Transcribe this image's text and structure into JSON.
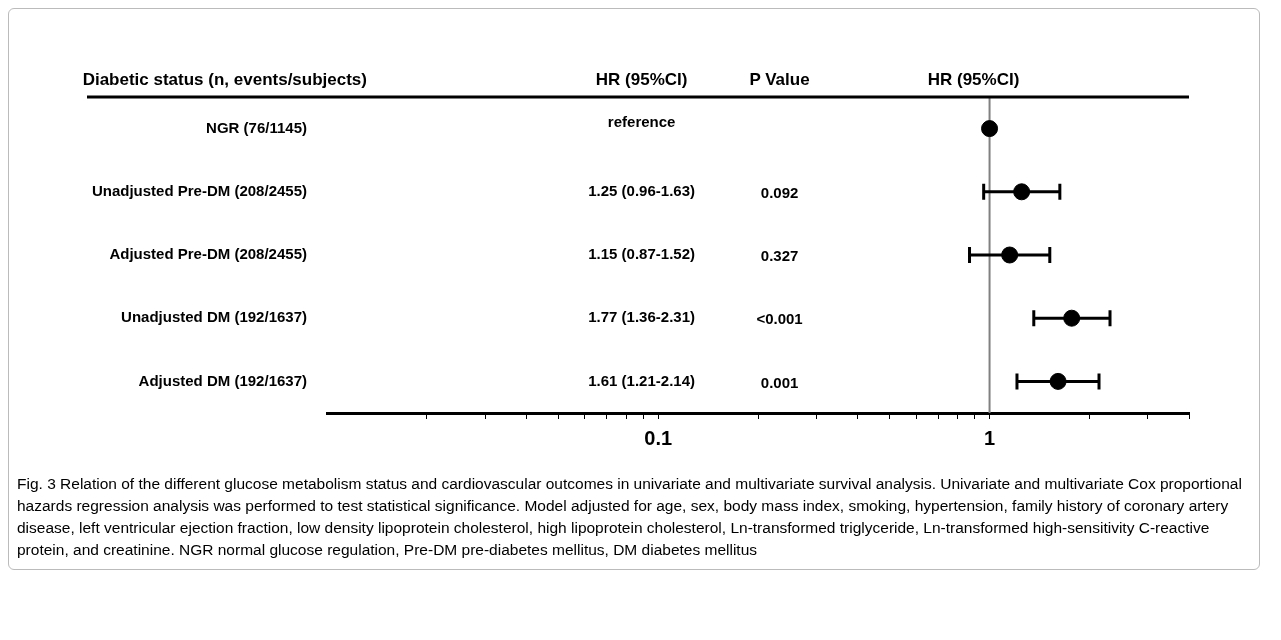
{
  "chart_data": {
    "type": "scatter",
    "orientation": "horizontal",
    "categories": [
      "NGR (76/1145)",
      "Unadjusted Pre-DM (208/2455)",
      "Adjusted Pre-DM (208/2455)",
      "Unadjusted DM (192/1637)",
      "Adjusted DM (192/1637)"
    ],
    "values": [
      1,
      1.25,
      1.15,
      1.77,
      1.61
    ],
    "errors": [
      null,
      [
        0.96,
        1.63
      ],
      [
        0.87,
        1.52
      ],
      [
        1.36,
        2.31
      ],
      [
        1.21,
        2.14
      ]
    ],
    "color": "#000000",
    "marker": "circle",
    "log": "x",
    "grid": false,
    "legend": false,
    "xlim": [
      0.01,
      4
    ],
    "xticks": [
      {
        "value": 0.02,
        "label": null
      },
      {
        "value": 0.03,
        "label": null
      },
      {
        "value": 0.04,
        "label": null
      },
      {
        "value": 0.05,
        "label": null
      },
      {
        "value": 0.06,
        "label": null
      },
      {
        "value": 0.07,
        "label": null
      },
      {
        "value": 0.08,
        "label": null
      },
      {
        "value": 0.09,
        "label": null
      },
      0.1,
      {
        "value": 0.2,
        "label": null
      },
      {
        "value": 0.3,
        "label": null
      },
      {
        "value": 0.4,
        "label": null
      },
      {
        "value": 0.5,
        "label": null
      },
      {
        "value": 0.6,
        "label": null
      },
      {
        "value": 0.7,
        "label": null
      },
      {
        "value": 0.8,
        "label": null
      },
      {
        "value": 0.9,
        "label": null
      },
      1,
      {
        "value": 2,
        "label": null
      },
      {
        "value": 3,
        "label": null
      },
      {
        "value": 4,
        "label": null
      }
    ],
    "ref_lines": [
      {
        "axis": "x",
        "value": 1,
        "color": "#808080"
      }
    ],
    "annotations": [
      "Diabetic status (n, events/subjects)",
      "HR (95%CI)",
      "P Value",
      "HR (95%CI)",
      "reference",
      "1.25 (0.96-1.63)",
      "1.15 (0.87-1.52)",
      "1.77 (1.36-2.31)",
      "1.61 (1.21-2.14)",
      "0.092",
      "0.327",
      "<0.001",
      "0.001",
      "Fig. 3 Relation of the different glucose metabolism status and cardiovascular outcomes in univariate and multivariate survival analysis. Univariate and multivariate Cox proportional hazards regression analysis was performed to test statistical significance. Model adjusted for age, sex, body mass index, smoking, hypertension, family history of coronary artery disease, left ventricular ejection fraction, low density lipoprotein cholesterol, high lipoprotein cholesterol, Ln-transformed triglyceride, Ln-transformed high-sensitivity C-reactive protein, and creatinine. NGR normal glucose regulation, Pre-DM pre-diabetes mellitus, DM diabetes mellitus"
    ]
  }
}
